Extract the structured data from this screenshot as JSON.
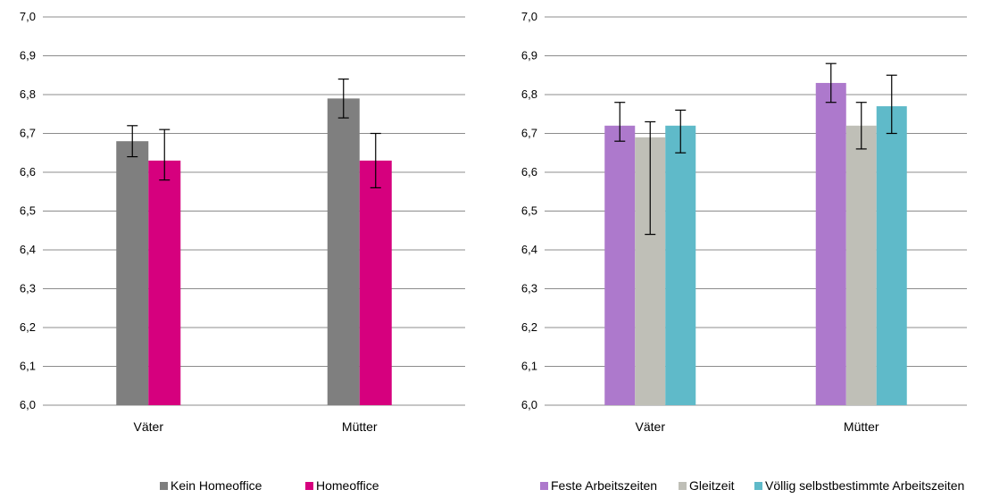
{
  "chart_data": [
    {
      "type": "bar",
      "title": "",
      "xlabel": "",
      "ylabel": "",
      "ylim": [
        6.0,
        7.0
      ],
      "yticks": [
        "6,0",
        "6,1",
        "6,2",
        "6,3",
        "6,4",
        "6,5",
        "6,6",
        "6,7",
        "6,8",
        "6,9",
        "7,0"
      ],
      "grid": true,
      "legend": "bottom",
      "categories": [
        "Väter",
        "Mütter"
      ],
      "series": [
        {
          "name": "Kein Homeoffice",
          "color": "#7f7f7f",
          "values": [
            6.68,
            6.79
          ],
          "error_low": [
            6.64,
            6.74
          ],
          "error_high": [
            6.72,
            6.84
          ]
        },
        {
          "name": "Homeoffice",
          "color": "#d6007e",
          "values": [
            6.63,
            6.63
          ],
          "error_low": [
            6.58,
            6.56
          ],
          "error_high": [
            6.71,
            6.7
          ]
        }
      ]
    },
    {
      "type": "bar",
      "title": "",
      "xlabel": "",
      "ylabel": "",
      "ylim": [
        6.0,
        7.0
      ],
      "yticks": [
        "6,0",
        "6,1",
        "6,2",
        "6,3",
        "6,4",
        "6,5",
        "6,6",
        "6,7",
        "6,8",
        "6,9",
        "7,0"
      ],
      "grid": true,
      "legend": "bottom",
      "categories": [
        "Väter",
        "Mütter"
      ],
      "series": [
        {
          "name": "Feste Arbeitszeiten",
          "color": "#ad79cc",
          "values": [
            6.72,
            6.83
          ],
          "error_low": [
            6.68,
            6.78
          ],
          "error_high": [
            6.78,
            6.88
          ]
        },
        {
          "name": "Gleitzeit",
          "color": "#bfbfb7",
          "values": [
            6.69,
            6.72
          ],
          "error_low": [
            6.44,
            6.66
          ],
          "error_high": [
            6.73,
            6.78
          ]
        },
        {
          "name": "Völlig selbstbestimmte Arbeitszeiten",
          "color": "#5fbac9",
          "values": [
            6.72,
            6.77
          ],
          "error_low": [
            6.65,
            6.7
          ],
          "error_high": [
            6.76,
            6.85
          ]
        }
      ]
    }
  ]
}
